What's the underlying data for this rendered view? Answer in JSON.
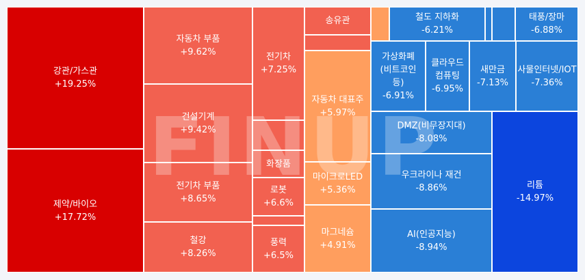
{
  "chart_data": {
    "type": "treemap",
    "watermark": "FINUP",
    "tiles": [
      {
        "id": "t01",
        "label": "강관/가스관",
        "value": "+19.25%",
        "color": "#d80000"
      },
      {
        "id": "t02",
        "label": "제약/바이오",
        "value": "+17.72%",
        "color": "#d80000"
      },
      {
        "id": "t03",
        "label": "자동차 부품",
        "value": "+9.62%",
        "color": "#f26150"
      },
      {
        "id": "t04",
        "label": "건설기계",
        "value": "+9.42%",
        "color": "#f26150"
      },
      {
        "id": "t05",
        "label": "전기차 부품",
        "value": "+8.65%",
        "color": "#f26150"
      },
      {
        "id": "t06",
        "label": "철강",
        "value": "+8.26%",
        "color": "#f26150"
      },
      {
        "id": "t07",
        "label": "전기차",
        "value": "+7.25%",
        "color": "#f26150"
      },
      {
        "id": "t08",
        "label": "",
        "value": "",
        "color": "#f26150"
      },
      {
        "id": "t09",
        "label": "화장품",
        "value": "",
        "color": "#f26150"
      },
      {
        "id": "t10",
        "label": "로봇",
        "value": "+6.6%",
        "color": "#f26150"
      },
      {
        "id": "t11",
        "label": "",
        "value": "",
        "color": "#f26150"
      },
      {
        "id": "t12",
        "label": "풍력",
        "value": "+6.5%",
        "color": "#f26150"
      },
      {
        "id": "t13",
        "label": "송유관",
        "value": "",
        "color": "#f26150"
      },
      {
        "id": "t14",
        "label": "",
        "value": "",
        "color": "#f26150"
      },
      {
        "id": "t15",
        "label": "자동차 대표주",
        "value": "+5.97%",
        "color": "#ff9e5e"
      },
      {
        "id": "t16",
        "label": "마이크로LED",
        "value": "+5.36%",
        "color": "#ff9e5e"
      },
      {
        "id": "t17",
        "label": "마그네슘",
        "value": "+4.91%",
        "color": "#ff9e5e"
      },
      {
        "id": "t18",
        "label": "",
        "value": "",
        "color": "#ff9e5e"
      },
      {
        "id": "t19",
        "label": "철도 지하화",
        "value": "-6.21%",
        "color": "#2a7fd6"
      },
      {
        "id": "t20",
        "label": "",
        "value": "",
        "color": "#2a7fd6"
      },
      {
        "id": "t21",
        "label": "",
        "value": "",
        "color": "#2a7fd6"
      },
      {
        "id": "t22",
        "label": "",
        "value": "",
        "color": "#2a7fd6"
      },
      {
        "id": "t23",
        "label": "태풍/장마",
        "value": "-6.88%",
        "color": "#2a7fd6"
      },
      {
        "id": "t24",
        "label": "가상화폐(비트코인 등)",
        "value": "-6.91%",
        "color": "#2a7fd6"
      },
      {
        "id": "t25",
        "label": "클라우드 컴퓨팅",
        "value": "-6.95%",
        "color": "#2a7fd6"
      },
      {
        "id": "t26",
        "label": "새만금",
        "value": "-7.13%",
        "color": "#2a7fd6"
      },
      {
        "id": "t27",
        "label": "사물인터넷/IOT",
        "value": "-7.36%",
        "color": "#2a7fd6"
      },
      {
        "id": "t28",
        "label": "DMZ(비무장지대)",
        "value": "-8.08%",
        "color": "#2a7fd6"
      },
      {
        "id": "t29",
        "label": "우크라이나 재건",
        "value": "-8.86%",
        "color": "#2a7fd6"
      },
      {
        "id": "t30",
        "label": "AI(인공지능)",
        "value": "-8.94%",
        "color": "#2a7fd6"
      },
      {
        "id": "t31",
        "label": "리튬",
        "value": "-14.97%",
        "color": "#0c45de"
      }
    ]
  }
}
